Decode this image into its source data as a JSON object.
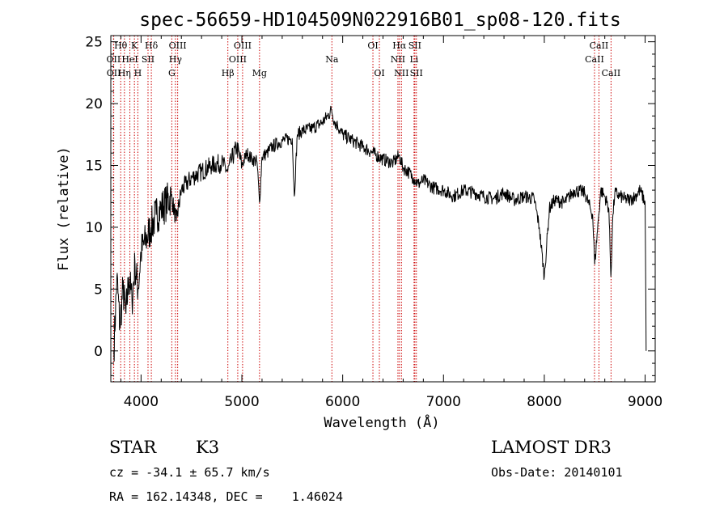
{
  "chart_data": {
    "type": "line",
    "title": "spec-56659-HD104509N022916B01_sp08-120.fits",
    "xlabel": "Wavelength (Å)",
    "ylabel": "Flux (relative)",
    "xlim": [
      3700,
      9100
    ],
    "ylim": [
      -2.5,
      25.5
    ],
    "x_ticks": [
      4000,
      5000,
      6000,
      7000,
      8000,
      9000
    ],
    "y_ticks": [
      0,
      5,
      10,
      15,
      20,
      25
    ],
    "x_ticks_labels": [
      "4000",
      "5000",
      "6000",
      "7000",
      "8000",
      "9000"
    ],
    "y_ticks_labels": [
      "0",
      "5",
      "10",
      "15",
      "20",
      "25"
    ],
    "series": [
      {
        "name": "flux",
        "x": [
          3730,
          3760,
          3790,
          3820,
          3850,
          3880,
          3910,
          3940,
          3970,
          4000,
          4050,
          4100,
          4150,
          4200,
          4250,
          4300,
          4350,
          4400,
          4450,
          4500,
          4600,
          4700,
          4800,
          4860,
          4900,
          4950,
          5000,
          5050,
          5100,
          5150,
          5175,
          5200,
          5250,
          5300,
          5400,
          5500,
          5520,
          5550,
          5600,
          5700,
          5800,
          5850,
          5890,
          5920,
          5950,
          6000,
          6100,
          6200,
          6300,
          6400,
          6500,
          6560,
          6600,
          6650,
          6700,
          6750,
          6800,
          6900,
          7000,
          7100,
          7200,
          7300,
          7400,
          7500,
          7600,
          7700,
          7800,
          7900,
          7950,
          8000,
          8050,
          8100,
          8200,
          8300,
          8400,
          8480,
          8500,
          8540,
          8560,
          8600,
          8640,
          8660,
          8680,
          8700,
          8750,
          8800,
          8850,
          8900,
          8950,
          9000,
          9010
        ],
        "y": [
          0,
          6,
          2,
          5,
          3,
          6,
          4,
          7,
          5,
          8,
          9,
          10,
          11,
          11.5,
          12,
          12.5,
          10.5,
          13,
          13.5,
          14,
          14.5,
          15,
          15.2,
          14.5,
          15.5,
          16.5,
          15,
          16,
          15.5,
          15.3,
          12,
          15.7,
          16,
          16.5,
          17,
          17.2,
          12.5,
          17.5,
          17.8,
          18,
          18.5,
          19,
          19.5,
          18.5,
          18.2,
          17.5,
          17,
          16.5,
          16,
          15.5,
          15.2,
          15.8,
          14.8,
          14.5,
          14,
          13.5,
          13.8,
          13.2,
          13,
          12.5,
          13,
          12.8,
          12.5,
          12.3,
          12.8,
          12.2,
          12.5,
          12.3,
          10,
          6,
          11.5,
          12.2,
          12,
          13,
          12.8,
          11,
          7,
          11,
          13,
          12.5,
          11.5,
          6,
          11,
          12.8,
          12.5,
          12.3,
          12.2,
          12.5,
          13,
          12,
          0
        ]
      }
    ],
    "spectral_lines": [
      {
        "label": "Hθ",
        "x": 3798,
        "row": 0
      },
      {
        "label": "OII",
        "x": 3727,
        "row": 1
      },
      {
        "label": "OII",
        "x": 3729,
        "row": 2
      },
      {
        "label": "Hη",
        "x": 3835,
        "row": 2
      },
      {
        "label": "HeI",
        "x": 3889,
        "row": 1
      },
      {
        "label": "K",
        "x": 3934,
        "row": 0
      },
      {
        "label": "SII",
        "x": 4069,
        "row": 1
      },
      {
        "label": "H",
        "x": 3968,
        "row": 2
      },
      {
        "label": "Hδ",
        "x": 4102,
        "row": 0
      },
      {
        "label": "OIII",
        "x": 4363,
        "row": 0
      },
      {
        "label": "Hγ",
        "x": 4341,
        "row": 1
      },
      {
        "label": "G",
        "x": 4305,
        "row": 2
      },
      {
        "label": "Hβ",
        "x": 4861,
        "row": 2
      },
      {
        "label": "OIII",
        "x": 5007,
        "row": 0
      },
      {
        "label": "OIII",
        "x": 4959,
        "row": 1
      },
      {
        "label": "Mg",
        "x": 5175,
        "row": 2
      },
      {
        "label": "Na",
        "x": 5893,
        "row": 1
      },
      {
        "label": "OI",
        "x": 6300,
        "row": 0
      },
      {
        "label": "OI",
        "x": 6364,
        "row": 2
      },
      {
        "label": "Hα",
        "x": 6563,
        "row": 0
      },
      {
        "label": "SII",
        "x": 6716,
        "row": 0
      },
      {
        "label": "NII",
        "x": 6548,
        "row": 1
      },
      {
        "label": "Li",
        "x": 6708,
        "row": 1
      },
      {
        "label": "NII",
        "x": 6583,
        "row": 2
      },
      {
        "label": "SII",
        "x": 6731,
        "row": 2
      },
      {
        "label": "CaII",
        "x": 8542,
        "row": 0
      },
      {
        "label": "CaII",
        "x": 8498,
        "row": 1
      },
      {
        "label": "CaII",
        "x": 8662,
        "row": 2
      }
    ]
  },
  "info": {
    "object_class": "STAR",
    "subclass": "K3",
    "survey": "LAMOST DR3",
    "redshift": "cz = -34.1 ± 65.7 km/s",
    "obs_date": "Obs-Date: 20140101",
    "coords": "RA = 162.14348, DEC =    1.46024"
  }
}
